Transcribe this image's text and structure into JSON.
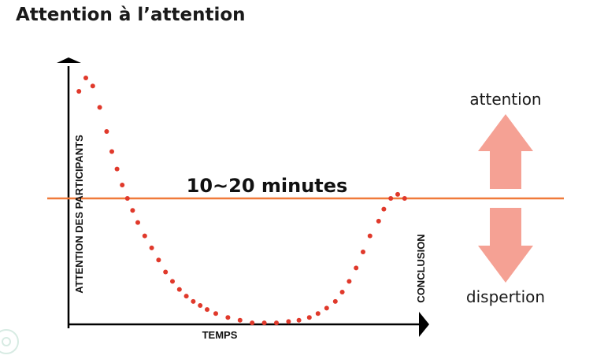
{
  "title": "Attention à l’attention",
  "colors": {
    "dots": "#e0392b",
    "threshold_line": "#f07a3a",
    "arrow": "#f5a194",
    "axis": "#000000"
  },
  "chart_data": {
    "type": "scatter",
    "ylabel": "ATTENTION DES PARTICIPANTS",
    "xlabel": "TEMPS",
    "end_label": "CONCLUSION",
    "threshold_label": "10~20 minutes",
    "threshold_y": 0,
    "xlim": [
      0,
      100
    ],
    "ylim": [
      -100,
      100
    ],
    "x": [
      3,
      5,
      7,
      9,
      11,
      12.5,
      14,
      15.5,
      17,
      18.5,
      20,
      22,
      24,
      26,
      28,
      30,
      32,
      34,
      36,
      38,
      40,
      42.5,
      46,
      49.5,
      53,
      56.5,
      60,
      63.5,
      66.5,
      69.5,
      72,
      74.5,
      77,
      79,
      81,
      83,
      85,
      87,
      89.5,
      91,
      93,
      95,
      97
    ],
    "y": [
      80,
      90,
      84,
      68,
      50,
      35,
      22,
      10,
      0,
      -9,
      -18,
      -28,
      -37,
      -46,
      -55,
      -62,
      -68,
      -73,
      -77,
      -80,
      -83,
      -86,
      -89,
      -91,
      -93,
      -93,
      -93,
      -92,
      -91,
      -89,
      -86,
      -82,
      -77,
      -70,
      -62,
      -52,
      -40,
      -28,
      -17,
      -8,
      0,
      3,
      0
    ],
    "annotations": {
      "positive_label": "attention",
      "negative_label": "dispertion"
    }
  }
}
